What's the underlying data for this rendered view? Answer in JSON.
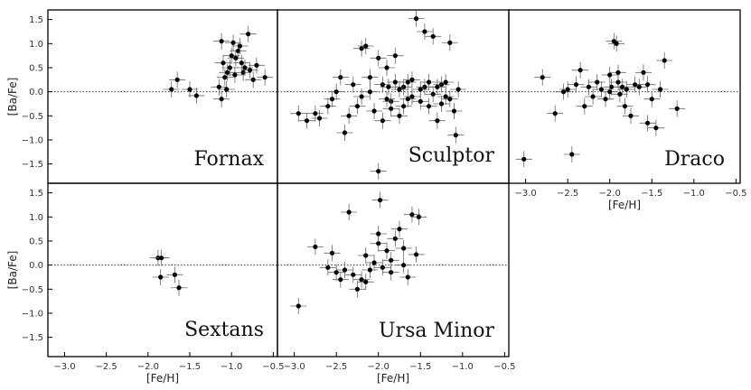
{
  "chart_data": [
    {
      "type": "scatter",
      "name": "Fornax",
      "xlabel": "",
      "ylabel": "[Ba/Fe]",
      "xlim": [
        -3.2,
        -0.45
      ],
      "ylim": [
        -1.9,
        1.7
      ],
      "xticks": [],
      "yticks": [
        -1.5,
        -1.0,
        -0.5,
        0.0,
        0.5,
        1.0,
        1.5
      ],
      "refline_y": 0.0,
      "points": [
        [
          -1.72,
          0.05
        ],
        [
          -1.65,
          0.25
        ],
        [
          -1.5,
          0.05
        ],
        [
          -1.42,
          -0.08
        ],
        [
          -1.15,
          0.1
        ],
        [
          -1.12,
          1.05
        ],
        [
          -1.1,
          0.6
        ],
        [
          -1.08,
          0.3
        ],
        [
          -1.05,
          0.4
        ],
        [
          -1.02,
          0.5
        ],
        [
          -1.0,
          0.75
        ],
        [
          -0.98,
          1.02
        ],
        [
          -0.95,
          0.7
        ],
        [
          -0.92,
          0.85
        ],
        [
          -0.9,
          0.95
        ],
        [
          -0.88,
          0.6
        ],
        [
          -0.86,
          0.4
        ],
        [
          -0.84,
          0.5
        ],
        [
          -0.8,
          1.2
        ],
        [
          -0.78,
          0.45
        ],
        [
          -0.74,
          0.25
        ],
        [
          -0.7,
          0.55
        ],
        [
          -0.6,
          0.3
        ],
        [
          -1.12,
          -0.15
        ],
        [
          -1.06,
          0.05
        ],
        [
          -0.96,
          0.35
        ]
      ]
    },
    {
      "type": "scatter",
      "name": "Sculptor",
      "xlabel": "",
      "ylabel": "",
      "xlim": [
        -3.2,
        -0.45
      ],
      "ylim": [
        -1.9,
        1.7
      ],
      "xticks": [],
      "yticks": [],
      "refline_y": 0.0,
      "points": [
        [
          -2.95,
          -0.45
        ],
        [
          -2.85,
          -0.6
        ],
        [
          -2.75,
          -0.45
        ],
        [
          -2.7,
          -0.55
        ],
        [
          -2.6,
          -0.3
        ],
        [
          -2.55,
          -0.15
        ],
        [
          -2.5,
          0.0
        ],
        [
          -2.45,
          0.3
        ],
        [
          -2.4,
          -0.85
        ],
        [
          -2.35,
          -0.5
        ],
        [
          -2.3,
          0.15
        ],
        [
          -2.25,
          -0.3
        ],
        [
          -2.2,
          0.9
        ],
        [
          -2.15,
          0.95
        ],
        [
          -2.1,
          0.0
        ],
        [
          -2.05,
          -0.4
        ],
        [
          -2.0,
          0.7
        ],
        [
          -1.95,
          -0.6
        ],
        [
          -1.9,
          0.5
        ],
        [
          -1.88,
          0.1
        ],
        [
          -1.85,
          -0.2
        ],
        [
          -1.8,
          0.75
        ],
        [
          -1.75,
          -0.5
        ],
        [
          -1.7,
          -0.3
        ],
        [
          -1.65,
          0.2
        ],
        [
          -1.6,
          -0.1
        ],
        [
          -1.55,
          1.52
        ],
        [
          -1.5,
          0.05
        ],
        [
          -1.45,
          1.25
        ],
        [
          -1.4,
          -0.3
        ],
        [
          -1.35,
          1.15
        ],
        [
          -1.3,
          -0.6
        ],
        [
          -1.25,
          0.15
        ],
        [
          -1.2,
          -0.1
        ],
        [
          -1.15,
          1.02
        ],
        [
          -1.1,
          -0.4
        ],
        [
          -1.08,
          -0.9
        ],
        [
          -1.05,
          0.05
        ],
        [
          -2.0,
          -1.65
        ],
        [
          -1.9,
          -0.15
        ],
        [
          -1.8,
          0.2
        ],
        [
          -1.7,
          0.1
        ],
        [
          -1.6,
          0.25
        ],
        [
          -1.5,
          -0.2
        ],
        [
          -1.45,
          0.1
        ],
        [
          -1.4,
          0.2
        ],
        [
          -1.35,
          -0.05
        ],
        [
          -1.3,
          0.1
        ],
        [
          -1.25,
          -0.25
        ],
        [
          -1.2,
          0.2
        ],
        [
          -1.15,
          -0.15
        ],
        [
          -2.2,
          -0.1
        ],
        [
          -2.1,
          0.3
        ],
        [
          -1.95,
          0.15
        ],
        [
          -1.85,
          -0.35
        ],
        [
          -1.75,
          0.05
        ],
        [
          -1.65,
          -0.15
        ]
      ]
    },
    {
      "type": "scatter",
      "name": "Draco",
      "xlabel": "[Fe/H]",
      "ylabel": "",
      "xlim": [
        -3.2,
        -0.45
      ],
      "ylim": [
        -1.9,
        1.7
      ],
      "xticks": [
        -3.0,
        -2.5,
        -2.0,
        -1.5,
        -1.0,
        -0.5
      ],
      "yticks": [],
      "refline_y": 0.0,
      "points": [
        [
          -3.02,
          -1.4
        ],
        [
          -2.8,
          0.3
        ],
        [
          -2.65,
          -0.45
        ],
        [
          -2.55,
          0.0
        ],
        [
          -2.5,
          0.05
        ],
        [
          -2.45,
          -1.3
        ],
        [
          -2.4,
          0.15
        ],
        [
          -2.35,
          0.45
        ],
        [
          -2.3,
          -0.3
        ],
        [
          -2.25,
          0.1
        ],
        [
          -2.2,
          -0.1
        ],
        [
          -2.15,
          0.2
        ],
        [
          -2.1,
          0.05
        ],
        [
          -2.05,
          -0.15
        ],
        [
          -2.0,
          0.35
        ],
        [
          -1.98,
          0.1
        ],
        [
          -1.95,
          1.05
        ],
        [
          -1.92,
          1.0
        ],
        [
          -1.9,
          0.2
        ],
        [
          -1.88,
          -0.05
        ],
        [
          -1.85,
          0.1
        ],
        [
          -1.82,
          -0.3
        ],
        [
          -1.8,
          0.05
        ],
        [
          -1.75,
          -0.5
        ],
        [
          -1.7,
          0.15
        ],
        [
          -1.65,
          0.1
        ],
        [
          -1.6,
          0.4
        ],
        [
          -1.55,
          -0.65
        ],
        [
          -1.5,
          -0.15
        ],
        [
          -1.45,
          -0.75
        ],
        [
          -1.4,
          0.05
        ],
        [
          -1.35,
          0.65
        ],
        [
          -1.2,
          -0.35
        ],
        [
          -1.55,
          0.15
        ],
        [
          -2.0,
          0.0
        ],
        [
          -1.9,
          0.4
        ]
      ]
    },
    {
      "type": "scatter",
      "name": "Sextans",
      "xlabel": "[Fe/H]",
      "ylabel": "[Ba/Fe]",
      "xlim": [
        -3.2,
        -0.45
      ],
      "ylim": [
        -1.9,
        1.7
      ],
      "xticks": [
        -3.0,
        -2.5,
        -2.0,
        -1.5,
        -1.0,
        -0.5
      ],
      "yticks": [
        -1.5,
        -1.0,
        -0.5,
        0.0,
        0.5,
        1.0,
        1.5
      ],
      "refline_y": 0.0,
      "points": [
        [
          -1.88,
          0.15
        ],
        [
          -1.84,
          0.15
        ],
        [
          -1.85,
          -0.25
        ],
        [
          -1.68,
          -0.2
        ],
        [
          -1.63,
          -0.47
        ]
      ]
    },
    {
      "type": "scatter",
      "name": "Ursa Minor",
      "xlabel": "[Fe/H]",
      "ylabel": "",
      "xlim": [
        -3.2,
        -0.45
      ],
      "ylim": [
        -1.9,
        1.7
      ],
      "xticks": [
        -3.0,
        -2.5,
        -2.0,
        -1.5,
        -1.0,
        -0.5
      ],
      "yticks": [],
      "refline_y": 0.0,
      "points": [
        [
          -2.95,
          -0.85
        ],
        [
          -2.75,
          0.38
        ],
        [
          -2.6,
          -0.05
        ],
        [
          -2.55,
          0.25
        ],
        [
          -2.5,
          -0.15
        ],
        [
          -2.45,
          -0.3
        ],
        [
          -2.4,
          -0.1
        ],
        [
          -2.35,
          1.1
        ],
        [
          -2.3,
          -0.2
        ],
        [
          -2.25,
          -0.5
        ],
        [
          -2.2,
          -0.3
        ],
        [
          -2.15,
          0.2
        ],
        [
          -2.1,
          -0.1
        ],
        [
          -2.05,
          0.05
        ],
        [
          -2.0,
          0.45
        ],
        [
          -1.98,
          1.35
        ],
        [
          -1.95,
          -0.05
        ],
        [
          -1.9,
          0.3
        ],
        [
          -1.85,
          0.1
        ],
        [
          -1.8,
          0.55
        ],
        [
          -1.75,
          0.75
        ],
        [
          -1.7,
          0.0
        ],
        [
          -1.65,
          -0.25
        ],
        [
          -1.6,
          1.05
        ],
        [
          -1.55,
          0.22
        ],
        [
          -1.52,
          1.0
        ],
        [
          -2.0,
          0.65
        ],
        [
          -1.85,
          -0.15
        ],
        [
          -2.15,
          -0.35
        ],
        [
          -1.7,
          0.35
        ]
      ]
    }
  ]
}
